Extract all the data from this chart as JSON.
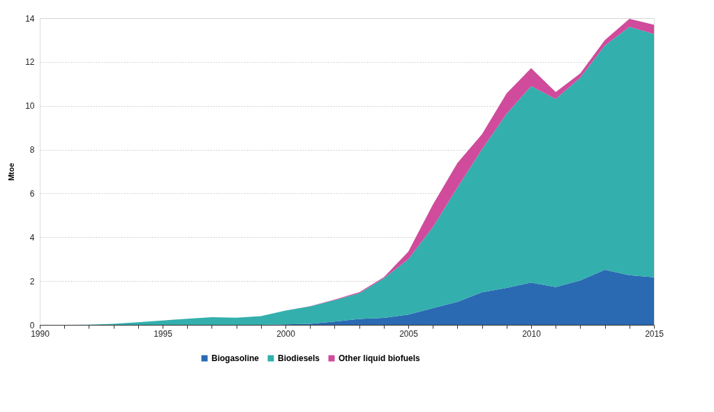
{
  "chart_data": {
    "type": "area",
    "stacked": true,
    "ylabel": "Mtoe",
    "x": [
      1990,
      1991,
      1992,
      1993,
      1994,
      1995,
      1996,
      1997,
      1998,
      1999,
      2000,
      2001,
      2002,
      2003,
      2004,
      2005,
      2006,
      2007,
      2008,
      2009,
      2010,
      2011,
      2012,
      2013,
      2014,
      2015
    ],
    "series": [
      {
        "name": "Biogasoline",
        "color": "#2a6ab3",
        "values": [
          0,
          0,
          0,
          0,
          0,
          0,
          0,
          0,
          0,
          0,
          0.02,
          0.05,
          0.15,
          0.27,
          0.32,
          0.47,
          0.76,
          1.05,
          1.49,
          1.69,
          1.93,
          1.73,
          2.03,
          2.51,
          2.27,
          2.17
        ]
      },
      {
        "name": "Biodiesels",
        "color": "#33afad",
        "values": [
          0,
          0,
          0.01,
          0.05,
          0.12,
          0.2,
          0.28,
          0.35,
          0.33,
          0.4,
          0.63,
          0.79,
          0.98,
          1.17,
          1.8,
          2.53,
          3.7,
          5.22,
          6.53,
          7.94,
          8.97,
          8.58,
          9.26,
          10.24,
          11.33,
          11.11
        ]
      },
      {
        "name": "Other liquid biofuels",
        "color": "#d04b9b",
        "values": [
          0,
          0,
          0,
          0,
          0,
          0,
          0,
          0,
          0,
          0,
          0,
          0.01,
          0.02,
          0.05,
          0.05,
          0.34,
          1.03,
          1.12,
          0.68,
          0.93,
          0.82,
          0.32,
          0.19,
          0.25,
          0.37,
          0.42
        ]
      }
    ],
    "xlim": [
      1990,
      2015
    ],
    "xticks": [
      1990,
      {
        "value": 1991,
        "label": null
      },
      {
        "value": 1992,
        "label": null
      },
      {
        "value": 1993,
        "label": null
      },
      {
        "value": 1994,
        "label": null
      },
      1995,
      {
        "value": 1996,
        "label": null
      },
      {
        "value": 1997,
        "label": null
      },
      {
        "value": 1998,
        "label": null
      },
      {
        "value": 1999,
        "label": null
      },
      2000,
      {
        "value": 2001,
        "label": null
      },
      {
        "value": 2002,
        "label": null
      },
      {
        "value": 2003,
        "label": null
      },
      {
        "value": 2004,
        "label": null
      },
      2005,
      {
        "value": 2006,
        "label": null
      },
      {
        "value": 2007,
        "label": null
      },
      {
        "value": 2008,
        "label": null
      },
      {
        "value": 2009,
        "label": null
      },
      2010,
      {
        "value": 2011,
        "label": null
      },
      {
        "value": 2012,
        "label": null
      },
      {
        "value": 2013,
        "label": null
      },
      {
        "value": 2014,
        "label": null
      },
      2015
    ],
    "ylim": [
      0,
      14
    ],
    "yticks": [
      0,
      2,
      4,
      6,
      8,
      10,
      12,
      14
    ],
    "grid": "y",
    "legend": "bottom"
  }
}
